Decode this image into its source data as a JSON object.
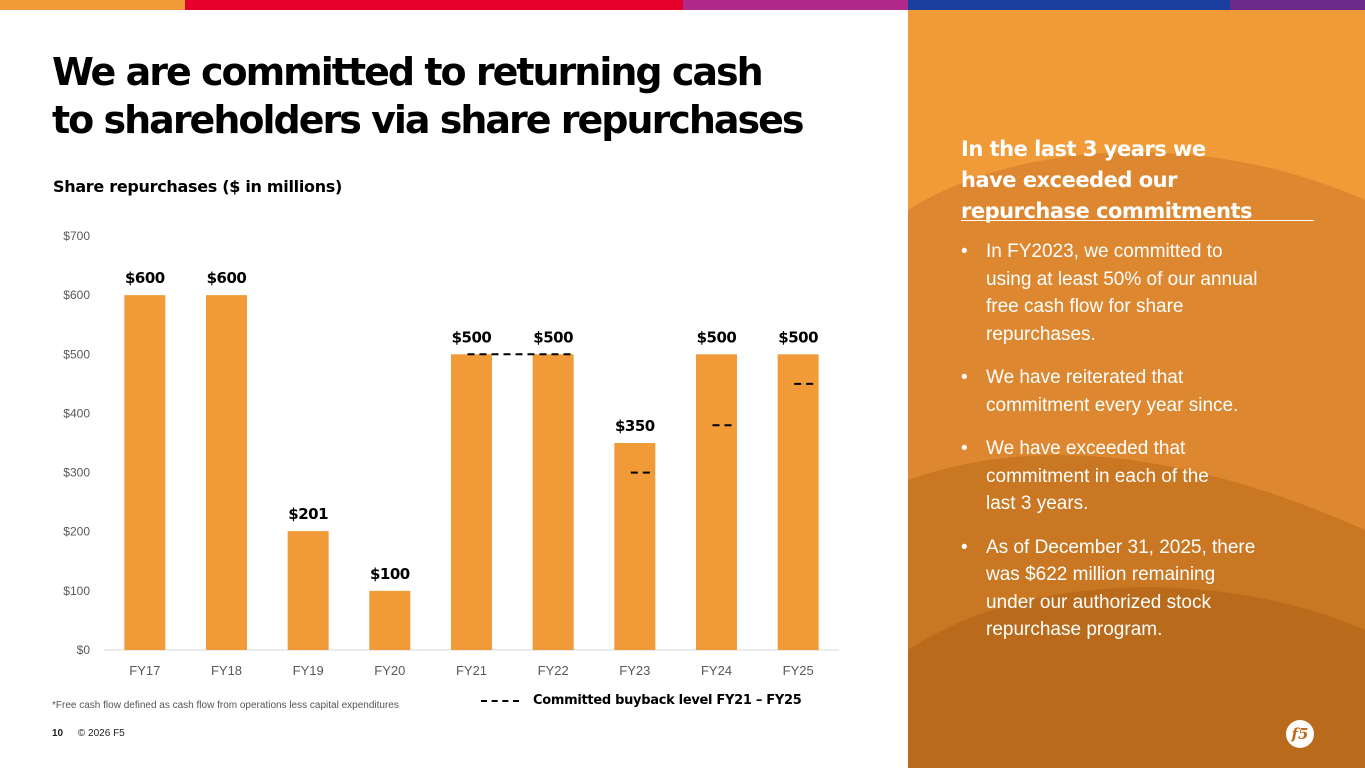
{
  "topbar_colors": [
    "#f09b38",
    "#e4002b",
    "#b02a8c",
    "#1a3f9e",
    "#6b2a8a"
  ],
  "title": {
    "line1": "We are committed to returning cash",
    "line2": "to shareholders via share repurchases"
  },
  "chart_data": {
    "type": "bar",
    "title": "Share repurchases ($ in millions)",
    "categories": [
      "FY17",
      "FY18",
      "FY19",
      "FY20",
      "FY21",
      "FY22",
      "FY23",
      "FY24",
      "FY25"
    ],
    "values": [
      600,
      600,
      201,
      100,
      500,
      500,
      350,
      500,
      500
    ],
    "data_labels": [
      "$600",
      "$600",
      "$201",
      "$100",
      "$500",
      "$500",
      "$350",
      "$500",
      "$500"
    ],
    "ylim": [
      0,
      700
    ],
    "yticks": [
      0,
      100,
      200,
      300,
      400,
      500,
      600,
      700
    ],
    "ytick_labels": [
      "$0",
      "$100",
      "$200",
      "$300",
      "$400",
      "$500",
      "$600",
      "$700"
    ],
    "bar_color": "#f09b38",
    "committed_buyback": [
      {
        "categories": [
          "FY21",
          "FY22"
        ],
        "value": 500
      },
      {
        "categories": [
          "FY23"
        ],
        "value": 300
      },
      {
        "categories": [
          "FY24"
        ],
        "value": 380
      },
      {
        "categories": [
          "FY25"
        ],
        "value": 450
      }
    ],
    "legend": "Committed buyback level FY21 – FY25",
    "grid": false,
    "xlabel": "",
    "ylabel": ""
  },
  "footnote": "*Free cash flow defined as cash flow from operations less capital expenditures",
  "footer": {
    "page_number": "10",
    "copyright": "© 2026 F5"
  },
  "panel": {
    "heading_lines": [
      "In the last 3 years we",
      "have exceeded our",
      "repurchase commitments"
    ],
    "bullets": [
      [
        "In FY2023, we committed to",
        "using at least 50% of our annual",
        "free cash flow for share",
        "repurchases."
      ],
      [
        "We have reiterated that",
        "commitment every year since."
      ],
      [
        "We have exceeded that",
        "commitment in each of the",
        "last 3 years."
      ],
      [
        "As of December 31, 2025, there",
        "was $622 million remaining",
        "under our authorized stock",
        "repurchase program."
      ]
    ],
    "bullet_glyph": "•",
    "logo_text": "f5"
  }
}
